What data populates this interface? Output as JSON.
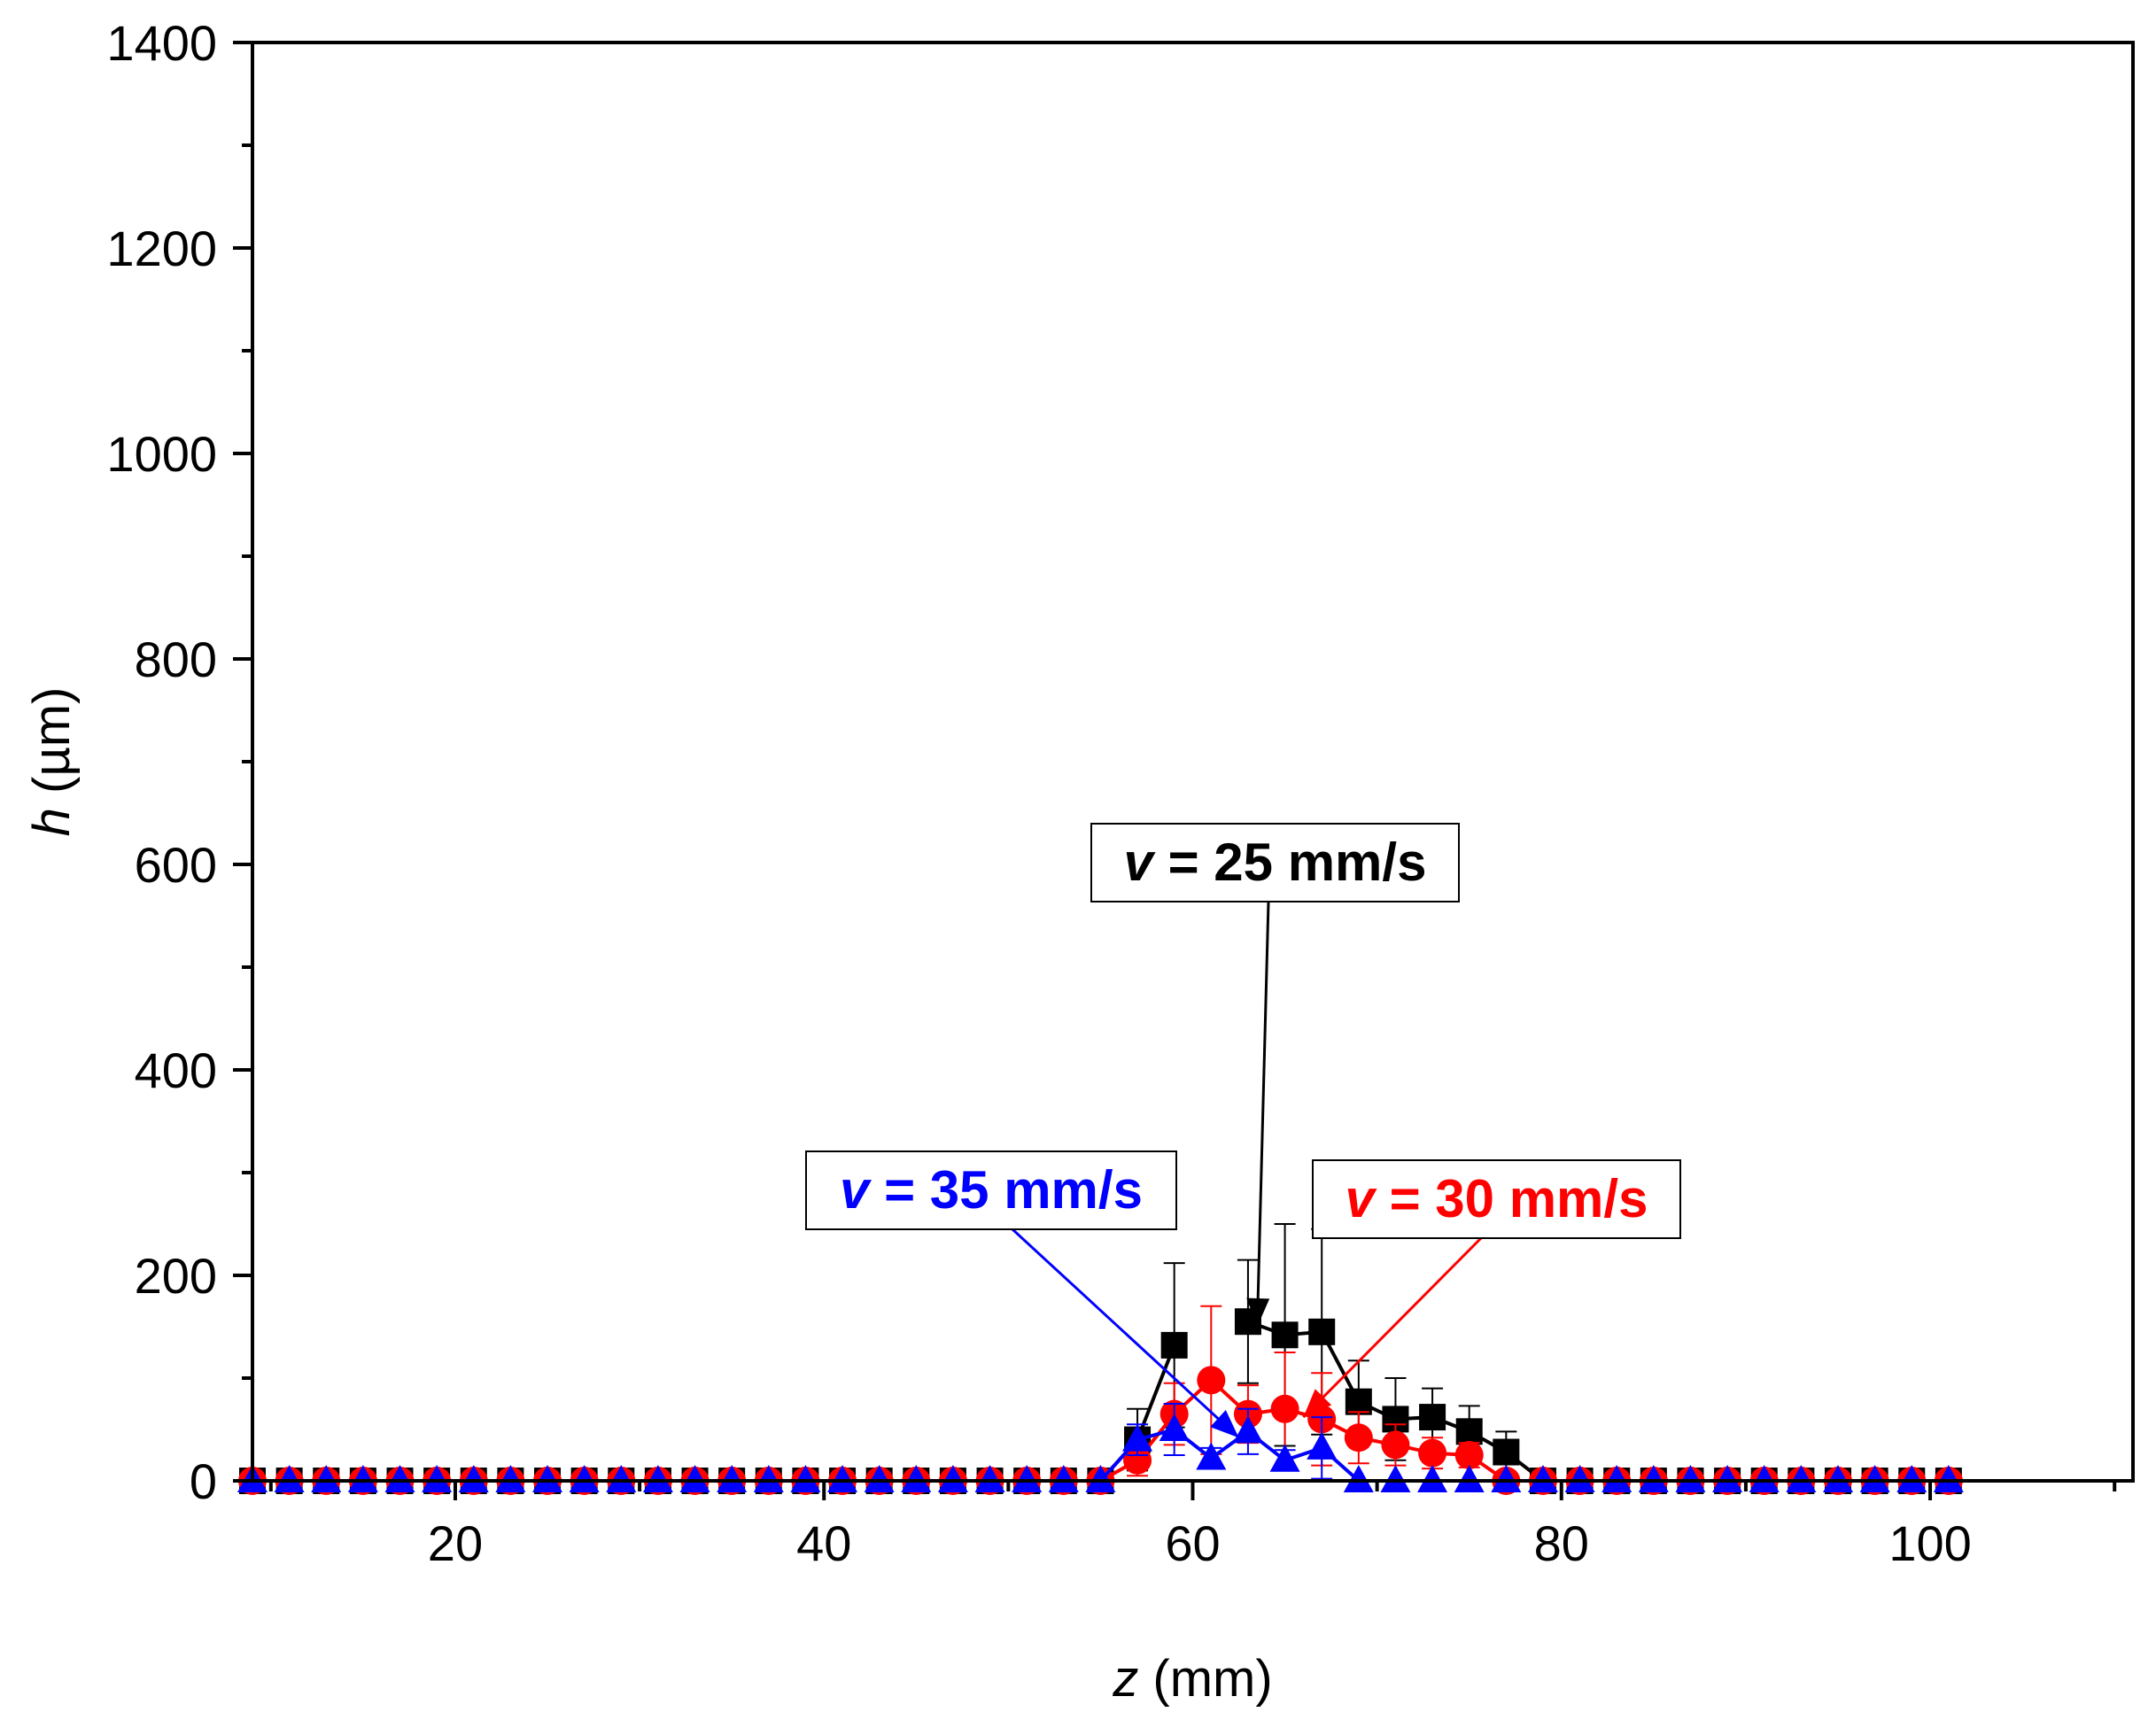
{
  "chart_data": {
    "type": "scatter",
    "title": "",
    "xlabel_var": "z",
    "xlabel_unit": " (mm)",
    "ylabel_var": "h",
    "ylabel_unit": " (µm)",
    "xlim": [
      9,
      111
    ],
    "ylim": [
      0,
      1400
    ],
    "x_ticks": [
      20,
      40,
      60,
      80,
      100
    ],
    "x_tick_labels": [
      "20",
      "40",
      "60",
      "80",
      "100"
    ],
    "y_ticks": [
      0,
      200,
      400,
      600,
      800,
      1000,
      1200,
      1400
    ],
    "y_tick_labels": [
      "0",
      "200",
      "400",
      "600",
      "800",
      "1000",
      "1200",
      "1400"
    ],
    "grid": false,
    "legend": "none (callout labels)",
    "series": [
      {
        "name": "v = 25 mm/s",
        "color": "#000000",
        "marker": "square",
        "x": [
          9,
          11,
          13,
          15,
          17,
          19,
          21,
          23,
          25,
          27,
          29,
          31,
          33,
          35,
          37,
          39,
          41,
          43,
          45,
          47,
          49,
          51,
          53,
          55,
          57,
          59,
          61,
          63,
          65,
          67,
          69,
          71,
          73,
          75,
          77,
          79,
          81,
          83,
          85,
          87,
          89,
          91,
          93,
          95,
          97,
          99,
          101
        ],
        "y": [
          0,
          0,
          0,
          0,
          0,
          0,
          0,
          0,
          0,
          0,
          0,
          0,
          0,
          0,
          0,
          0,
          0,
          0,
          0,
          0,
          0,
          0,
          0,
          0,
          40,
          132,
          null,
          155,
          142,
          145,
          77,
          60,
          62,
          48,
          28,
          0,
          0,
          0,
          0,
          0,
          0,
          0,
          0,
          0,
          0,
          0,
          0
        ],
        "err": [
          0,
          0,
          0,
          0,
          0,
          0,
          0,
          0,
          0,
          0,
          0,
          0,
          0,
          0,
          0,
          0,
          0,
          0,
          0,
          0,
          0,
          0,
          0,
          0,
          30,
          80,
          null,
          60,
          108,
          100,
          40,
          40,
          28,
          25,
          20,
          0,
          0,
          0,
          0,
          0,
          0,
          0,
          0,
          0,
          0,
          0,
          0
        ]
      },
      {
        "name": "v = 30 mm/s",
        "color": "#ff0000",
        "marker": "circle",
        "x": [
          9,
          11,
          13,
          15,
          17,
          19,
          21,
          23,
          25,
          27,
          29,
          31,
          33,
          35,
          37,
          39,
          41,
          43,
          45,
          47,
          49,
          51,
          53,
          55,
          57,
          59,
          61,
          63,
          65,
          67,
          69,
          71,
          73,
          75,
          77,
          79,
          81,
          83,
          85,
          87,
          89,
          91,
          93,
          95,
          97,
          99,
          101
        ],
        "y": [
          0,
          0,
          0,
          0,
          0,
          0,
          0,
          0,
          0,
          0,
          0,
          0,
          0,
          0,
          0,
          0,
          0,
          0,
          0,
          0,
          0,
          0,
          0,
          0,
          20,
          65,
          98,
          65,
          70,
          60,
          42,
          35,
          27,
          25,
          0,
          0,
          0,
          0,
          0,
          0,
          0,
          0,
          0,
          0,
          0,
          0,
          0
        ],
        "err": [
          0,
          0,
          0,
          0,
          0,
          0,
          0,
          0,
          0,
          0,
          0,
          0,
          0,
          0,
          0,
          0,
          0,
          0,
          0,
          0,
          0,
          0,
          0,
          0,
          15,
          30,
          72,
          28,
          55,
          45,
          25,
          20,
          15,
          12,
          0,
          0,
          0,
          0,
          0,
          0,
          0,
          0,
          0,
          0,
          0,
          0,
          0
        ]
      },
      {
        "name": "v = 35 mm/s",
        "color": "#0000ff",
        "marker": "triangle",
        "x": [
          9,
          11,
          13,
          15,
          17,
          19,
          21,
          23,
          25,
          27,
          29,
          31,
          33,
          35,
          37,
          39,
          41,
          43,
          45,
          47,
          49,
          51,
          53,
          55,
          57,
          59,
          61,
          63,
          65,
          67,
          69,
          71,
          73,
          75,
          77,
          79,
          81,
          83,
          85,
          87,
          89,
          91,
          93,
          95,
          97,
          99,
          101
        ],
        "y": [
          0,
          0,
          0,
          0,
          0,
          0,
          0,
          0,
          0,
          0,
          0,
          0,
          0,
          0,
          0,
          0,
          0,
          0,
          0,
          0,
          0,
          0,
          0,
          0,
          40,
          50,
          22,
          48,
          20,
          32,
          0,
          0,
          0,
          0,
          0,
          0,
          0,
          0,
          0,
          0,
          0,
          0,
          0,
          0,
          0,
          0,
          0
        ],
        "err": [
          0,
          0,
          0,
          0,
          0,
          0,
          0,
          0,
          0,
          0,
          0,
          0,
          0,
          0,
          0,
          0,
          0,
          0,
          0,
          0,
          0,
          0,
          0,
          0,
          15,
          25,
          10,
          22,
          10,
          30,
          0,
          0,
          0,
          0,
          0,
          0,
          0,
          0,
          0,
          0,
          0,
          0,
          0,
          0,
          0,
          0,
          0
        ]
      }
    ],
    "annotations": [
      {
        "series": 0,
        "italic": "v",
        "rest": " = 25 mm/s",
        "color": "#000000",
        "points_to": [
          63.5,
          150
        ]
      },
      {
        "series": 1,
        "italic": "v",
        "rest": " = 30 mm/s",
        "color": "#ff0000",
        "points_to": [
          66,
          62
        ]
      },
      {
        "series": 2,
        "italic": "v",
        "rest": " = 35 mm/s",
        "color": "#0000ff",
        "points_to": [
          62.5,
          42
        ]
      }
    ]
  }
}
